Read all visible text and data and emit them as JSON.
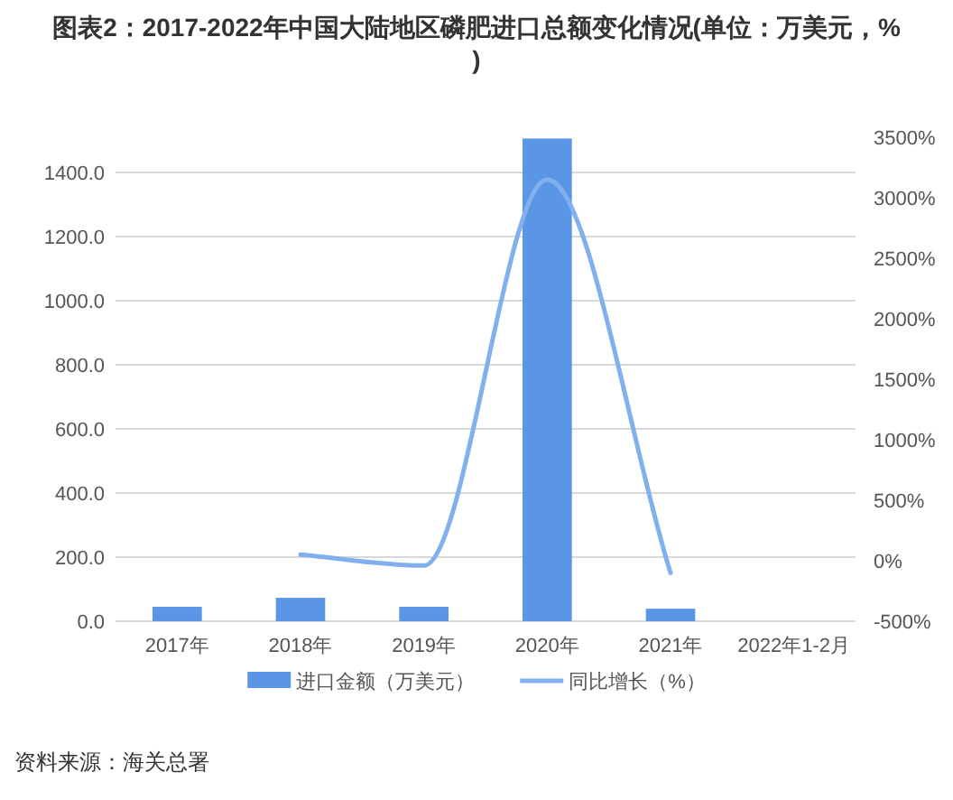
{
  "chart_data": {
    "type": "bar",
    "title": "图表2：2017-2022年中国大陆地区磷肥进口总额变化情况(单位：万美元，%)",
    "categories": [
      "2017年",
      "2018年",
      "2019年",
      "2020年",
      "2021年",
      "2022年1-2月"
    ],
    "series": [
      {
        "name": "进口金额（万美元）",
        "color": "#5b96e6",
        "values": [
          45,
          73,
          45,
          1506,
          39,
          null
        ]
      },
      {
        "name": "同比增长（%）",
        "color": "#82b0ee",
        "type": "line",
        "axis": "y2",
        "values": [
          null,
          50,
          -40,
          3150,
          -100,
          null
        ]
      }
    ],
    "ylim": [
      0,
      1510
    ],
    "yticks": [
      "0.0",
      {
        "value": 200,
        "label": "200.0"
      },
      {
        "value": 400,
        "label": "400.0"
      },
      {
        "value": 600,
        "label": "600.0"
      },
      {
        "value": 800,
        "label": "800.0"
      },
      {
        "value": 1000,
        "label": "1000.0"
      },
      {
        "value": 1200,
        "label": "1200.0"
      },
      {
        "value": 1400,
        "label": "1400.0"
      }
    ],
    "y2lim": [
      -500,
      3500
    ],
    "y2ticks": [
      {
        "value": -500,
        "label": "-500%"
      },
      {
        "value": 0,
        "label": "0%"
      },
      {
        "value": 500,
        "label": "500%"
      },
      {
        "value": 1000,
        "label": "1000%"
      },
      {
        "value": 1500,
        "label": "1500%"
      },
      {
        "value": 2000,
        "label": "2000%"
      },
      {
        "value": 2500,
        "label": "2500%"
      },
      {
        "value": 3000,
        "label": "3000%"
      },
      {
        "value": 3500,
        "label": "3500%"
      }
    ],
    "grid": "y",
    "legend": "bottom",
    "annotations": [
      "资料来源：海关总署"
    ]
  }
}
